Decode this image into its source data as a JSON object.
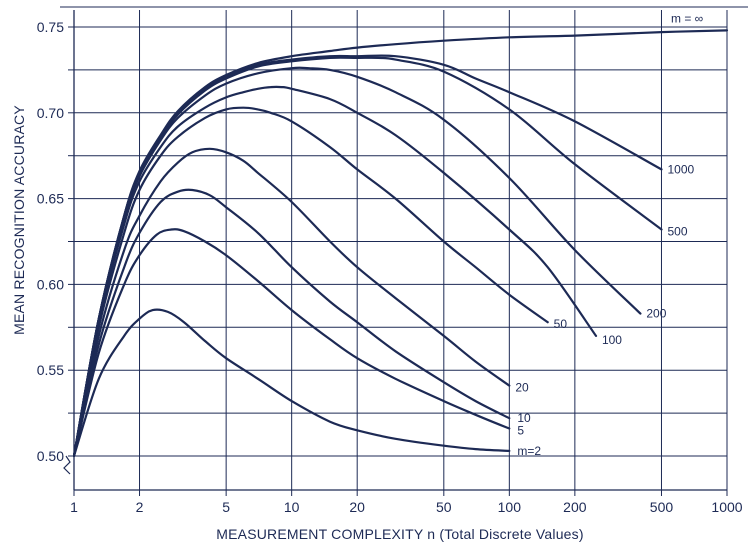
{
  "colors": {
    "ink": "#1d2a55",
    "grid": "#1d2a55",
    "background": "#ffffff"
  },
  "chart_data": {
    "type": "line",
    "title": "",
    "xlabel": "MEASUREMENT COMPLEXITY n  (Total Discrete Values)",
    "ylabel": "MEAN RECOGNITION ACCURACY",
    "xscale": "log",
    "xlim": [
      1,
      1000
    ],
    "ylim": [
      0.5,
      0.75
    ],
    "grid": true,
    "legend": "none",
    "x_ticks": [
      {
        "value": 1,
        "label": "1"
      },
      {
        "value": 2,
        "label": "2"
      },
      {
        "value": 5,
        "label": "5"
      },
      {
        "value": 10,
        "label": "10"
      },
      {
        "value": 20,
        "label": "20"
      },
      {
        "value": 50,
        "label": "50"
      },
      {
        "value": 100,
        "label": "100"
      },
      {
        "value": 200,
        "label": "200"
      },
      {
        "value": 500,
        "label": "500"
      },
      {
        "value": 1000,
        "label": "1000"
      }
    ],
    "y_ticks": [
      {
        "value": 0.5,
        "label": "0.50"
      },
      {
        "value": 0.55,
        "label": "0.55"
      },
      {
        "value": 0.6,
        "label": "0.60"
      },
      {
        "value": 0.65,
        "label": "0.65"
      },
      {
        "value": 0.7,
        "label": "0.70"
      },
      {
        "value": 0.75,
        "label": "0.75"
      }
    ],
    "series": [
      {
        "name": "m=2",
        "x": [
          1,
          1.3,
          1.7,
          2.0,
          2.3,
          2.7,
          3.2,
          4,
          5,
          7,
          10,
          15,
          20,
          30,
          50,
          70,
          100
        ],
        "y": [
          0.5,
          0.545,
          0.57,
          0.58,
          0.585,
          0.584,
          0.578,
          0.567,
          0.557,
          0.545,
          0.532,
          0.52,
          0.515,
          0.51,
          0.506,
          0.504,
          0.503
        ]
      },
      {
        "name": "5",
        "x": [
          1,
          1.3,
          1.7,
          2.0,
          2.4,
          2.8,
          3.2,
          4,
          5,
          7,
          10,
          15,
          20,
          30,
          50,
          70,
          100
        ],
        "y": [
          0.5,
          0.56,
          0.6,
          0.617,
          0.629,
          0.632,
          0.631,
          0.625,
          0.617,
          0.602,
          0.585,
          0.568,
          0.557,
          0.545,
          0.532,
          0.524,
          0.516
        ]
      },
      {
        "name": "10",
        "x": [
          1,
          1.3,
          1.7,
          2.0,
          2.5,
          3.0,
          3.5,
          4.2,
          5,
          7,
          10,
          15,
          20,
          30,
          50,
          70,
          100
        ],
        "y": [
          0.5,
          0.565,
          0.61,
          0.63,
          0.648,
          0.654,
          0.655,
          0.652,
          0.645,
          0.63,
          0.61,
          0.59,
          0.578,
          0.561,
          0.543,
          0.532,
          0.522
        ]
      },
      {
        "name": "20",
        "x": [
          1,
          1.3,
          1.7,
          2.0,
          2.5,
          3.0,
          3.5,
          4.2,
          5,
          6,
          7,
          10,
          15,
          20,
          30,
          50,
          70,
          100
        ],
        "y": [
          0.5,
          0.57,
          0.62,
          0.64,
          0.66,
          0.671,
          0.677,
          0.679,
          0.677,
          0.672,
          0.665,
          0.648,
          0.625,
          0.61,
          0.592,
          0.57,
          0.555,
          0.541
        ]
      },
      {
        "name": "50",
        "x": [
          1,
          1.3,
          1.7,
          2.0,
          2.5,
          3.0,
          4,
          5,
          6,
          7,
          8,
          10,
          15,
          20,
          30,
          50,
          70,
          100,
          150
        ],
        "y": [
          0.5,
          0.575,
          0.63,
          0.655,
          0.675,
          0.686,
          0.697,
          0.702,
          0.703,
          0.702,
          0.7,
          0.695,
          0.68,
          0.667,
          0.65,
          0.625,
          0.61,
          0.594,
          0.578
        ]
      },
      {
        "name": "100",
        "x": [
          1,
          1.3,
          1.7,
          2.0,
          2.5,
          3.0,
          4,
          5,
          6,
          7,
          8,
          9,
          10,
          15,
          20,
          30,
          50,
          100,
          150,
          250
        ],
        "y": [
          0.5,
          0.578,
          0.635,
          0.66,
          0.68,
          0.692,
          0.703,
          0.709,
          0.712,
          0.714,
          0.715,
          0.715,
          0.714,
          0.708,
          0.7,
          0.687,
          0.665,
          0.632,
          0.61,
          0.57
        ]
      },
      {
        "name": "200",
        "x": [
          1,
          1.3,
          1.7,
          2.0,
          2.5,
          3.0,
          4,
          5,
          7,
          10,
          12,
          15,
          20,
          30,
          50,
          100,
          200,
          400
        ],
        "y": [
          0.5,
          0.58,
          0.638,
          0.663,
          0.684,
          0.697,
          0.71,
          0.717,
          0.723,
          0.726,
          0.726,
          0.725,
          0.721,
          0.712,
          0.696,
          0.662,
          0.62,
          0.583
        ]
      },
      {
        "name": "500",
        "x": [
          1,
          1.3,
          1.7,
          2.0,
          2.5,
          3.0,
          4,
          5,
          7,
          10,
          15,
          20,
          25,
          30,
          50,
          100,
          200,
          500
        ],
        "y": [
          0.5,
          0.58,
          0.64,
          0.664,
          0.685,
          0.699,
          0.713,
          0.72,
          0.727,
          0.73,
          0.732,
          0.732,
          0.732,
          0.731,
          0.724,
          0.702,
          0.67,
          0.632
        ]
      },
      {
        "name": "1000",
        "x": [
          1,
          1.3,
          1.7,
          2.0,
          2.5,
          3.0,
          4,
          5,
          7,
          10,
          15,
          20,
          30,
          50,
          70,
          100,
          200,
          500
        ],
        "y": [
          0.5,
          0.58,
          0.64,
          0.665,
          0.686,
          0.7,
          0.714,
          0.721,
          0.728,
          0.731,
          0.733,
          0.733,
          0.733,
          0.728,
          0.72,
          0.712,
          0.695,
          0.667
        ]
      },
      {
        "name": "m = ∞",
        "x": [
          1,
          1.3,
          1.7,
          2.0,
          2.5,
          3.0,
          4,
          5,
          7,
          10,
          15,
          20,
          30,
          50,
          100,
          200,
          500,
          1000
        ],
        "y": [
          0.5,
          0.58,
          0.64,
          0.666,
          0.687,
          0.701,
          0.715,
          0.722,
          0.729,
          0.733,
          0.736,
          0.738,
          0.74,
          0.742,
          0.744,
          0.745,
          0.747,
          0.748
        ]
      }
    ]
  }
}
